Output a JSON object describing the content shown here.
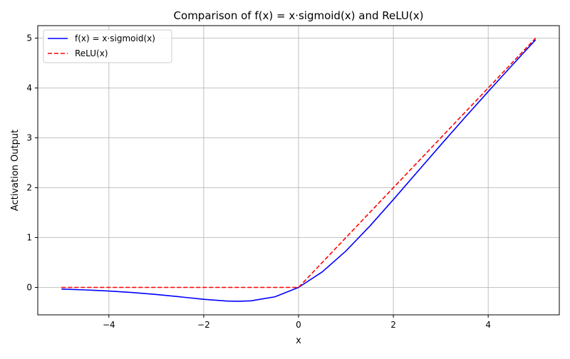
{
  "chart_data": {
    "type": "line",
    "title": "Comparison of f(x) = x·sigmoid(x) and ReLU(x)",
    "xlabel": "x",
    "ylabel": "Activation Output",
    "xlim": [
      -5.5,
      5.5
    ],
    "ylim": [
      -0.55,
      5.25
    ],
    "xticks": [
      -4,
      -2,
      0,
      2,
      4
    ],
    "yticks": [
      0,
      1,
      2,
      3,
      4,
      5
    ],
    "xtick_labels": [
      "−4",
      "−2",
      "0",
      "2",
      "4"
    ],
    "ytick_labels": [
      "0",
      "1",
      "2",
      "3",
      "4",
      "5"
    ],
    "grid": true,
    "legend": "top-left",
    "series": [
      {
        "name": "f(x) = x·sigmoid(x)",
        "color": "#0000ff",
        "style": "solid",
        "x": [
          -5,
          -4.5,
          -4,
          -3.5,
          -3,
          -2.5,
          -2,
          -1.5,
          -1.25,
          -1,
          -0.5,
          0,
          0.5,
          1,
          1.5,
          2,
          2.5,
          3,
          3.5,
          4,
          4.5,
          5
        ],
        "y": [
          -0.033,
          -0.05,
          -0.072,
          -0.102,
          -0.142,
          -0.189,
          -0.238,
          -0.274,
          -0.278,
          -0.269,
          -0.189,
          0,
          0.311,
          0.731,
          1.226,
          1.762,
          2.311,
          2.858,
          3.398,
          3.928,
          4.45,
          4.967
        ]
      },
      {
        "name": "ReLU(x)",
        "color": "#ff0000",
        "style": "dashed",
        "x": [
          -5,
          0,
          5
        ],
        "y": [
          0,
          0,
          5
        ]
      }
    ]
  }
}
